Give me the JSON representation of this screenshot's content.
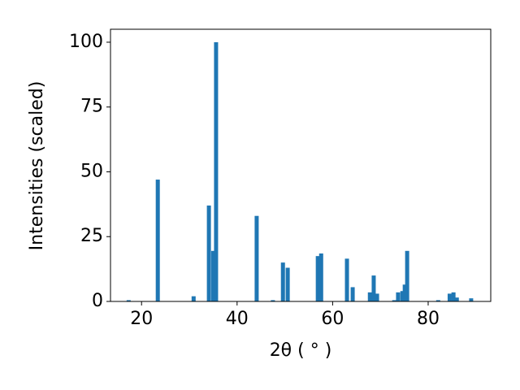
{
  "chart_data": {
    "type": "bar",
    "x_label": "2θ ( ° )",
    "y_label": "Intensities (scaled)",
    "color": "#1f77b4",
    "x": [
      17.3,
      23.4,
      30.9,
      34.1,
      35.0,
      35.6,
      44.1,
      47.5,
      49.6,
      50.6,
      56.9,
      57.6,
      63.0,
      64.2,
      67.8,
      68.6,
      69.3,
      72.9,
      73.7,
      74.6,
      75.1,
      75.6,
      82.1,
      84.5,
      85.3,
      86.0,
      89.0
    ],
    "values": [
      0.5,
      47,
      2,
      37,
      19.5,
      100,
      33,
      0.5,
      15,
      13,
      17.5,
      18.5,
      16.5,
      5.5,
      3.5,
      10,
      3,
      0.5,
      3.5,
      4,
      6.5,
      19.5,
      0.5,
      3,
      3.5,
      1.5,
      1.2
    ],
    "xlim": [
      13.5,
      93.1
    ],
    "ylim": [
      0,
      105
    ],
    "xticks": [
      20,
      40,
      60,
      80
    ],
    "yticks": [
      0,
      25,
      50,
      75,
      100
    ],
    "grid": false
  }
}
